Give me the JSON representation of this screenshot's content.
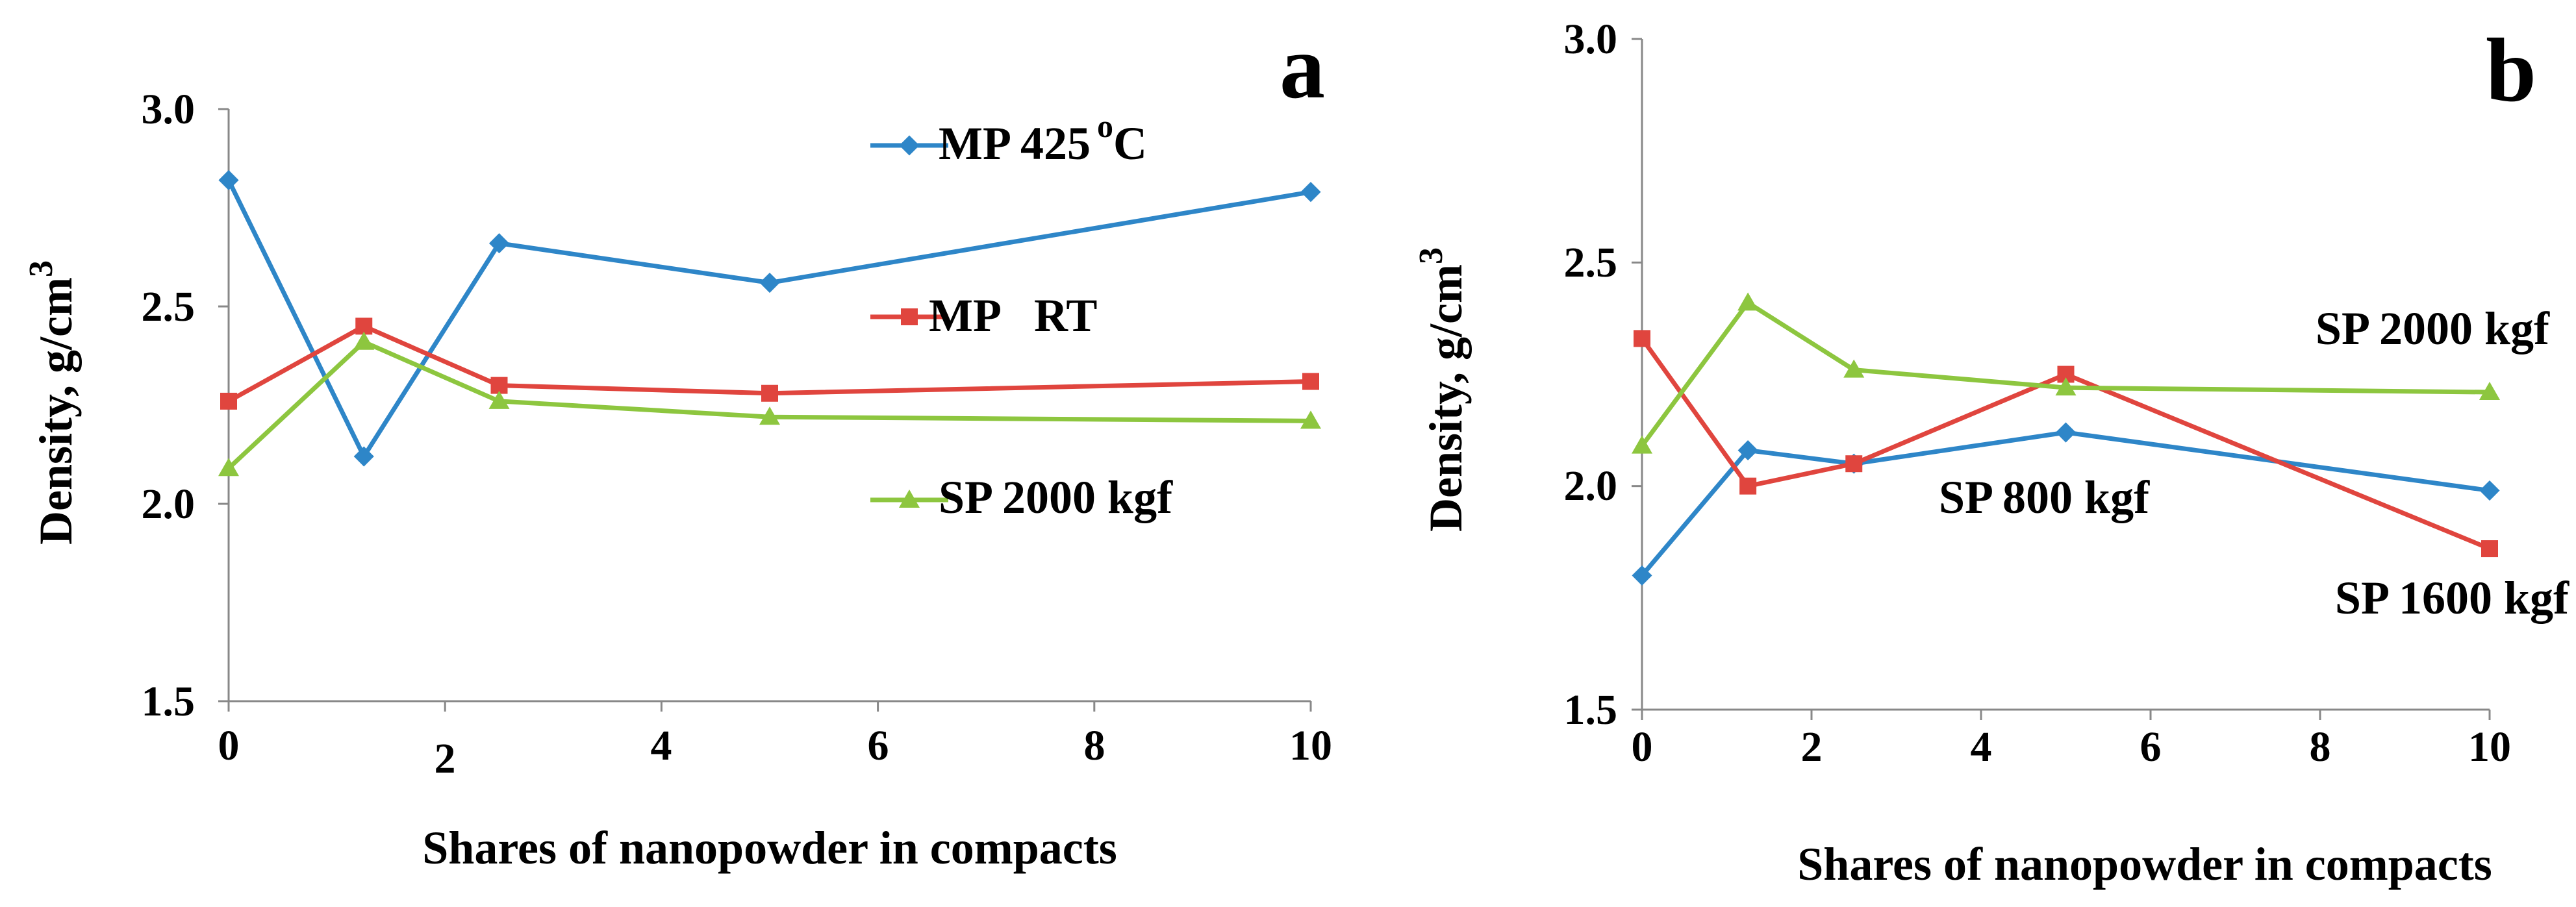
{
  "chart_data": [
    {
      "panel": "a",
      "type": "line",
      "xlabel": "Shares of nanopowder in compacts",
      "ylabel": "Density, g/cm",
      "ylabel_sup": "3",
      "xlim": [
        0,
        10
      ],
      "ylim": [
        1.5,
        3.0
      ],
      "xticks": [
        "0",
        "2",
        "4",
        "6",
        "8",
        "10"
      ],
      "yticks": [
        "1.5",
        "2.0",
        "2.5",
        "3.0"
      ],
      "x": [
        0,
        1.25,
        2.5,
        5,
        10
      ],
      "series": [
        {
          "name": "MP 425",
          "name_sup": "o",
          "name_suffix": "C",
          "color": "#2e86c8",
          "marker": "diamond",
          "values": [
            2.82,
            2.12,
            2.66,
            2.56,
            2.79
          ]
        },
        {
          "name": "MP   RT",
          "color": "#e0453e",
          "marker": "square",
          "values": [
            2.26,
            2.45,
            2.3,
            2.28,
            2.31
          ]
        },
        {
          "name": "SP 2000 kgf",
          "color": "#8dc63f",
          "marker": "triangle",
          "values": [
            2.09,
            2.41,
            2.26,
            2.22,
            2.21
          ]
        }
      ]
    },
    {
      "panel": "b",
      "type": "line",
      "xlabel": "Shares of nanopowder in compacts",
      "ylabel": "Density, g/cm",
      "ylabel_sup": "3",
      "xlim": [
        0,
        10
      ],
      "ylim": [
        1.5,
        3.0
      ],
      "xticks": [
        "0",
        "2",
        "4",
        "6",
        "8",
        "10"
      ],
      "yticks": [
        "1.5",
        "2.0",
        "2.5",
        "3.0"
      ],
      "x": [
        0,
        1.25,
        2.5,
        5,
        10
      ],
      "series": [
        {
          "name": "SP 800 kgf",
          "color": "#2e86c8",
          "marker": "diamond",
          "values": [
            1.8,
            2.08,
            2.05,
            2.12,
            1.99
          ]
        },
        {
          "name": "SP 1600 kgf",
          "color": "#e0453e",
          "marker": "square",
          "values": [
            2.33,
            2.0,
            2.05,
            2.25,
            1.86
          ]
        },
        {
          "name": "SP 2000 kgf",
          "color": "#8dc63f",
          "marker": "triangle",
          "values": [
            2.09,
            2.41,
            2.26,
            2.22,
            2.21
          ]
        }
      ]
    }
  ]
}
